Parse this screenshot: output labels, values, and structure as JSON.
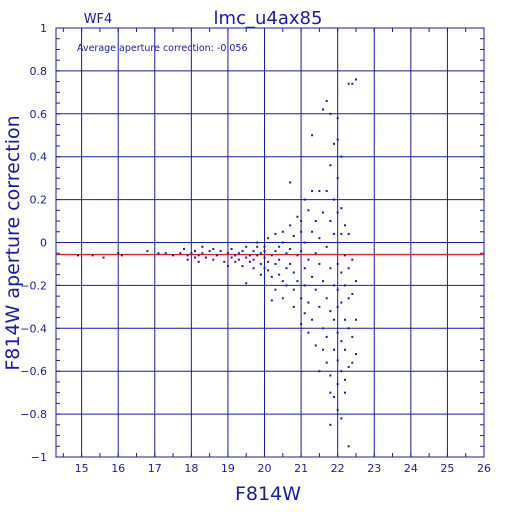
{
  "chart_data": {
    "type": "scatter",
    "title": "lmc_u4ax85",
    "panel_label": "WF4",
    "xlabel": "F814W",
    "ylabel": "F814W aperture correction",
    "annotation": "Average aperture correction: -0.056",
    "xlim": [
      14.3,
      26
    ],
    "ylim": [
      -1,
      1
    ],
    "xticks": [
      15,
      16,
      17,
      18,
      19,
      20,
      21,
      22,
      23,
      24,
      25,
      26
    ],
    "yticks": [
      -1,
      -0.8,
      -0.6,
      -0.4,
      -0.2,
      0,
      0.2,
      0.4,
      0.6,
      0.8,
      1
    ],
    "ytick_labels": [
      "−1",
      "−0.8",
      "−0.6",
      "−0.4",
      "−0.2",
      "0",
      "0.2",
      "0.4",
      "0.6",
      "0.8",
      "1"
    ],
    "grid": true,
    "reference_line": {
      "y": -0.056,
      "color": "#e02020"
    },
    "colors": {
      "axis": "#1a1aa6",
      "points": "#1a1aa6",
      "reference": "#e02020"
    },
    "points": [
      [
        14.9,
        -0.06
      ],
      [
        15.3,
        -0.06
      ],
      [
        15.6,
        -0.07
      ],
      [
        16.0,
        -0.05
      ],
      [
        16.1,
        -0.06
      ],
      [
        16.8,
        -0.04
      ],
      [
        17.1,
        -0.05
      ],
      [
        17.3,
        -0.05
      ],
      [
        17.5,
        -0.06
      ],
      [
        17.7,
        -0.05
      ],
      [
        17.8,
        -0.03
      ],
      [
        17.9,
        -0.06
      ],
      [
        17.9,
        -0.08
      ],
      [
        18.0,
        -0.05
      ],
      [
        18.1,
        -0.04
      ],
      [
        18.1,
        -0.07
      ],
      [
        18.2,
        -0.06
      ],
      [
        18.2,
        -0.09
      ],
      [
        18.3,
        -0.02
      ],
      [
        18.3,
        -0.05
      ],
      [
        18.4,
        -0.07
      ],
      [
        18.5,
        -0.04
      ],
      [
        18.6,
        -0.03
      ],
      [
        18.6,
        -0.08
      ],
      [
        18.7,
        -0.06
      ],
      [
        18.8,
        -0.04
      ],
      [
        18.9,
        -0.09
      ],
      [
        19.0,
        -0.05
      ],
      [
        19.0,
        -0.11
      ],
      [
        19.1,
        -0.07
      ],
      [
        19.1,
        -0.03
      ],
      [
        19.2,
        -0.06
      ],
      [
        19.2,
        -0.09
      ],
      [
        19.3,
        -0.05
      ],
      [
        19.3,
        -0.08
      ],
      [
        19.4,
        -0.04
      ],
      [
        19.4,
        -0.11
      ],
      [
        19.5,
        -0.07
      ],
      [
        19.5,
        -0.02
      ],
      [
        19.5,
        -0.19
      ],
      [
        19.6,
        -0.06
      ],
      [
        19.6,
        -0.09
      ],
      [
        19.7,
        -0.04
      ],
      [
        19.7,
        -0.08
      ],
      [
        19.7,
        -0.12
      ],
      [
        19.8,
        -0.02
      ],
      [
        19.8,
        -0.06
      ],
      [
        19.8,
        0.0
      ],
      [
        19.9,
        -0.1
      ],
      [
        19.9,
        -0.15
      ],
      [
        19.9,
        -0.05
      ],
      [
        20.0,
        -0.07
      ],
      [
        20.0,
        -0.12
      ],
      [
        20.0,
        -0.04
      ],
      [
        20.0,
        -0.02
      ],
      [
        20.1,
        0.02
      ],
      [
        20.1,
        -0.09
      ],
      [
        20.1,
        -0.13
      ],
      [
        20.2,
        -0.06
      ],
      [
        20.2,
        -0.16
      ],
      [
        20.2,
        -0.27
      ],
      [
        20.3,
        -0.04
      ],
      [
        20.3,
        -0.1
      ],
      [
        20.3,
        -0.22
      ],
      [
        20.3,
        0.04
      ],
      [
        20.4,
        -0.02
      ],
      [
        20.4,
        -0.15
      ],
      [
        20.4,
        -0.08
      ],
      [
        20.5,
        0.0
      ],
      [
        20.5,
        -0.18
      ],
      [
        20.5,
        -0.26
      ],
      [
        20.5,
        0.05
      ],
      [
        20.6,
        -0.05
      ],
      [
        20.6,
        -0.12
      ],
      [
        20.6,
        -0.2
      ],
      [
        20.7,
        0.08
      ],
      [
        20.7,
        -0.03
      ],
      [
        20.7,
        -0.1
      ],
      [
        20.7,
        0.28
      ],
      [
        20.8,
        -0.14
      ],
      [
        20.8,
        -0.22
      ],
      [
        20.8,
        0.03
      ],
      [
        20.8,
        -0.3
      ],
      [
        20.9,
        0.12
      ],
      [
        20.9,
        -0.06
      ],
      [
        20.9,
        -0.18
      ],
      [
        21.0,
        0.1
      ],
      [
        21.0,
        -0.04
      ],
      [
        21.0,
        -0.26
      ],
      [
        21.0,
        -0.38
      ],
      [
        21.0,
        0.05
      ],
      [
        21.1,
        0.2
      ],
      [
        21.1,
        -0.12
      ],
      [
        21.1,
        -0.2
      ],
      [
        21.1,
        -0.33
      ],
      [
        21.1,
        0.0
      ],
      [
        21.2,
        0.15
      ],
      [
        21.2,
        -0.08
      ],
      [
        21.2,
        -0.28
      ],
      [
        21.2,
        -0.42
      ],
      [
        21.3,
        0.24
      ],
      [
        21.3,
        0.05
      ],
      [
        21.3,
        -0.16
      ],
      [
        21.3,
        -0.36
      ],
      [
        21.3,
        0.5
      ],
      [
        21.4,
        -0.05
      ],
      [
        21.4,
        -0.22
      ],
      [
        21.4,
        0.1
      ],
      [
        21.4,
        -0.48
      ],
      [
        21.5,
        0.24
      ],
      [
        21.5,
        -0.1
      ],
      [
        21.5,
        -0.3
      ],
      [
        21.5,
        -0.6
      ],
      [
        21.5,
        0.02
      ],
      [
        21.6,
        0.62
      ],
      [
        21.6,
        0.14
      ],
      [
        21.6,
        -0.18
      ],
      [
        21.6,
        -0.4
      ],
      [
        21.6,
        -0.5
      ],
      [
        21.7,
        0.66
      ],
      [
        21.7,
        0.24
      ],
      [
        21.7,
        -0.02
      ],
      [
        21.7,
        -0.26
      ],
      [
        21.7,
        -0.44
      ],
      [
        21.7,
        -0.56
      ],
      [
        21.8,
        0.6
      ],
      [
        21.8,
        0.36
      ],
      [
        21.8,
        0.1
      ],
      [
        21.8,
        -0.12
      ],
      [
        21.8,
        -0.32
      ],
      [
        21.8,
        -0.62
      ],
      [
        21.8,
        -0.85
      ],
      [
        21.8,
        -0.7
      ],
      [
        21.9,
        0.46
      ],
      [
        21.9,
        0.2
      ],
      [
        21.9,
        0.04
      ],
      [
        21.9,
        -0.2
      ],
      [
        21.9,
        -0.36
      ],
      [
        21.9,
        -0.5
      ],
      [
        21.9,
        -0.72
      ],
      [
        22.0,
        0.58
      ],
      [
        22.0,
        0.48
      ],
      [
        22.0,
        0.3
      ],
      [
        22.0,
        0.14
      ],
      [
        22.0,
        0.0
      ],
      [
        22.0,
        -0.1
      ],
      [
        22.0,
        -0.22
      ],
      [
        22.0,
        -0.3
      ],
      [
        22.0,
        -0.42
      ],
      [
        22.0,
        -0.55
      ],
      [
        22.0,
        -0.66
      ],
      [
        22.0,
        -0.78
      ],
      [
        22.1,
        0.4
      ],
      [
        22.1,
        0.16
      ],
      [
        22.1,
        0.04
      ],
      [
        22.1,
        -0.14
      ],
      [
        22.1,
        -0.28
      ],
      [
        22.1,
        -0.46
      ],
      [
        22.1,
        -0.6
      ],
      [
        22.1,
        -0.82
      ],
      [
        22.2,
        0.08
      ],
      [
        22.2,
        -0.06
      ],
      [
        22.2,
        -0.2
      ],
      [
        22.2,
        -0.36
      ],
      [
        22.2,
        -0.5
      ],
      [
        22.2,
        -0.64
      ],
      [
        22.2,
        -0.7
      ],
      [
        22.3,
        0.74
      ],
      [
        22.3,
        0.04
      ],
      [
        22.3,
        -0.12
      ],
      [
        22.3,
        -0.26
      ],
      [
        22.3,
        -0.4
      ],
      [
        22.3,
        -0.58
      ],
      [
        22.3,
        -0.95
      ],
      [
        22.4,
        0.74
      ],
      [
        22.4,
        -0.08
      ],
      [
        22.4,
        -0.24
      ],
      [
        22.4,
        -0.44
      ],
      [
        22.4,
        -0.56
      ],
      [
        22.5,
        0.76
      ],
      [
        22.5,
        -0.18
      ],
      [
        22.5,
        -0.36
      ],
      [
        22.5,
        -0.52
      ]
    ]
  }
}
